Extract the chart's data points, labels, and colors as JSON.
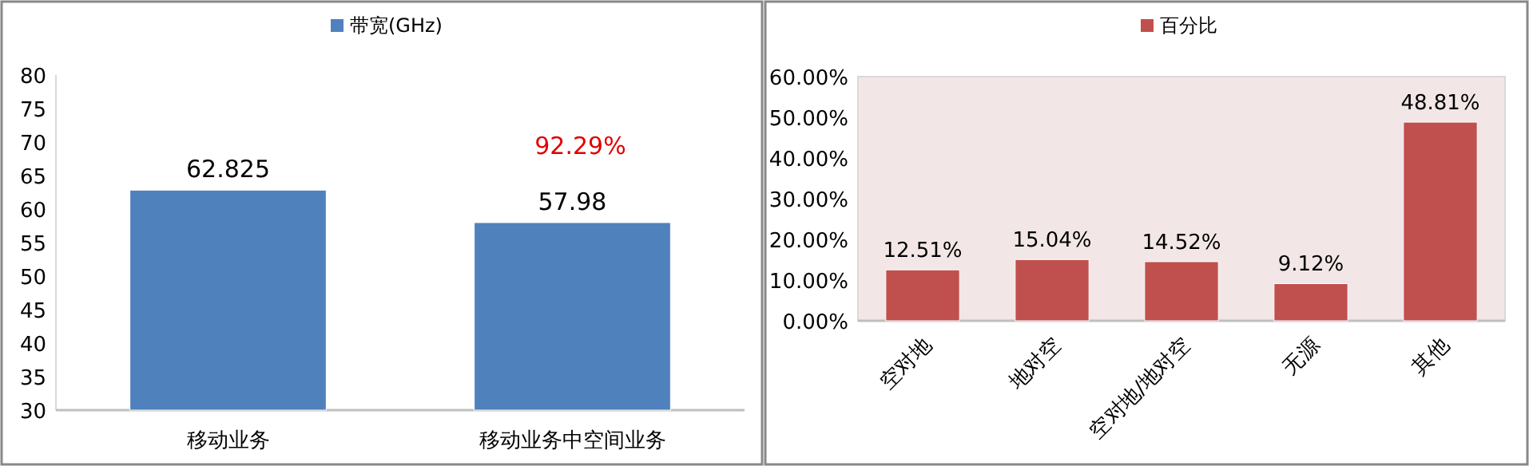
{
  "chart_data": [
    {
      "type": "bar",
      "categories": [
        "移动业务",
        "移动业务中空间业务"
      ],
      "series": [
        {
          "name": "带宽(GHz)",
          "color": "#4f81bd",
          "values": [
            62.825,
            57.98
          ]
        }
      ],
      "ylim": [
        30,
        80
      ],
      "yticks": [
        30,
        35,
        40,
        45,
        50,
        55,
        60,
        65,
        70,
        75,
        80
      ],
      "data_labels": true,
      "legend": "top",
      "annotations": [
        {
          "text": "92.29%",
          "x": "移动业务中空间业务",
          "y": 57.98
        }
      ]
    },
    {
      "type": "bar",
      "categories": [
        "空对地",
        "地对空",
        "空对地/地对空",
        "无源",
        "其他"
      ],
      "series": [
        {
          "name": "百分比",
          "color": "#c0504d",
          "values": [
            12.51,
            15.04,
            14.52,
            9.12,
            48.81
          ],
          "value_labels": [
            "12.51%",
            "15.04%",
            "14.52%",
            "9.12%",
            "48.81%"
          ]
        }
      ],
      "ylim": [
        0,
        60
      ],
      "yticks": [
        {
          "value": 0,
          "label": "0.00%"
        },
        {
          "value": 10,
          "label": "10.00%"
        },
        {
          "value": 20,
          "label": "20.00%"
        },
        {
          "value": 30,
          "label": "30.00%"
        },
        {
          "value": 40,
          "label": "40.00%"
        },
        {
          "value": 50,
          "label": "50.00%"
        },
        {
          "value": 60,
          "label": "60.00%"
        }
      ],
      "legend": "top"
    }
  ]
}
